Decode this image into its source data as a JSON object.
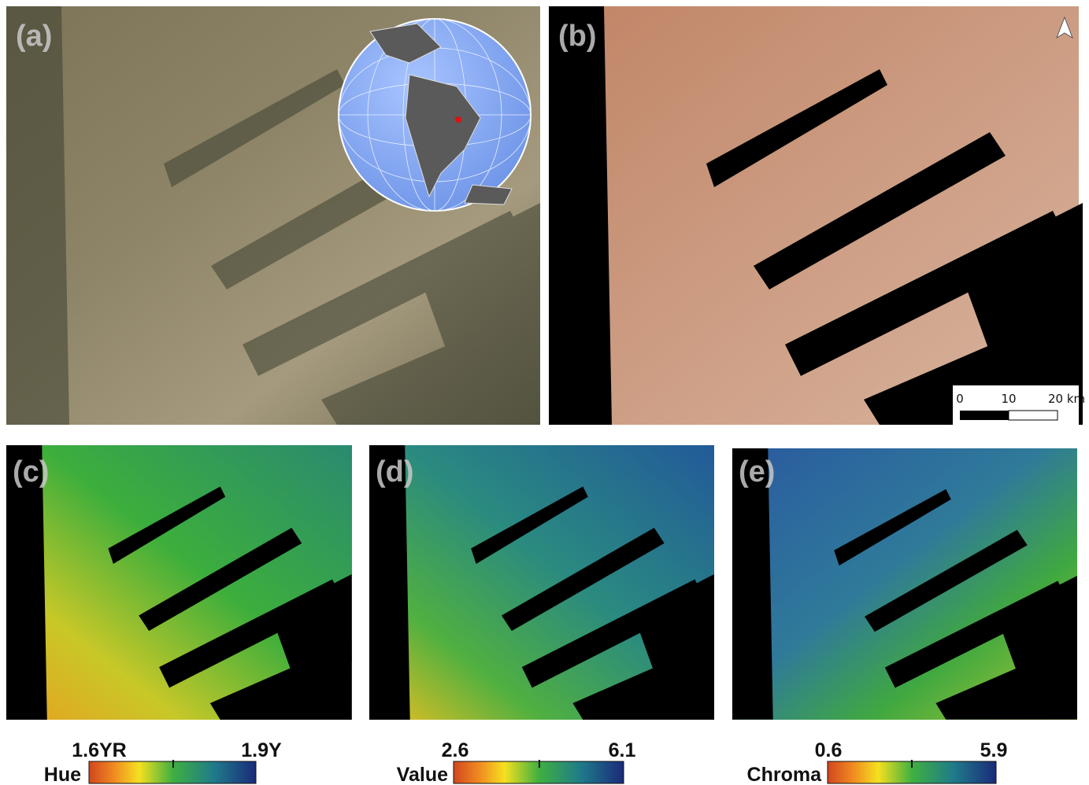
{
  "panels": [
    {
      "label": "(a)"
    },
    {
      "label": "(b)"
    },
    {
      "label": "(c)"
    },
    {
      "label": "(d)"
    },
    {
      "label": "(e)"
    }
  ],
  "scale_bar": {
    "ticks": [
      "0",
      "10",
      "20 km"
    ]
  },
  "colorbars": [
    {
      "title": "Hue",
      "min": "1.6YR",
      "max": "1.9Y"
    },
    {
      "title": "Value",
      "min": "2.6",
      "max": "6.1"
    },
    {
      "title": "Chroma",
      "min": "0.6",
      "max": "5.9"
    }
  ]
}
